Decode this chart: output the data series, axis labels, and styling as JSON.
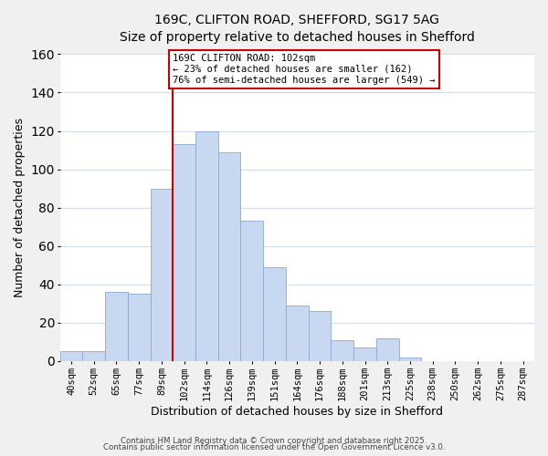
{
  "title": "169C, CLIFTON ROAD, SHEFFORD, SG17 5AG",
  "subtitle": "Size of property relative to detached houses in Shefford",
  "xlabel": "Distribution of detached houses by size in Shefford",
  "ylabel": "Number of detached properties",
  "bin_labels": [
    "40sqm",
    "52sqm",
    "65sqm",
    "77sqm",
    "89sqm",
    "102sqm",
    "114sqm",
    "126sqm",
    "139sqm",
    "151sqm",
    "164sqm",
    "176sqm",
    "188sqm",
    "201sqm",
    "213sqm",
    "225sqm",
    "238sqm",
    "250sqm",
    "262sqm",
    "275sqm",
    "287sqm"
  ],
  "bar_heights": [
    5,
    5,
    36,
    35,
    90,
    113,
    120,
    109,
    73,
    49,
    29,
    26,
    11,
    7,
    12,
    2,
    0,
    0,
    0,
    0,
    0
  ],
  "bar_color": "#c8d8f0",
  "bar_edge_color": "#8aaad0",
  "vline_color": "#cc0000",
  "ylim": [
    0,
    160
  ],
  "yticks": [
    0,
    20,
    40,
    60,
    80,
    100,
    120,
    140,
    160
  ],
  "annotation_title": "169C CLIFTON ROAD: 102sqm",
  "annotation_line1": "← 23% of detached houses are smaller (162)",
  "annotation_line2": "76% of semi-detached houses are larger (549) →",
  "annotation_box_color": "#ffffff",
  "annotation_box_edge": "#cc0000",
  "footer1": "Contains HM Land Registry data © Crown copyright and database right 2025.",
  "footer2": "Contains public sector information licensed under the Open Government Licence v3.0.",
  "fig_bg_color": "#f0f0f0",
  "plot_bg_color": "#ffffff",
  "grid_color": "#d0dce8"
}
